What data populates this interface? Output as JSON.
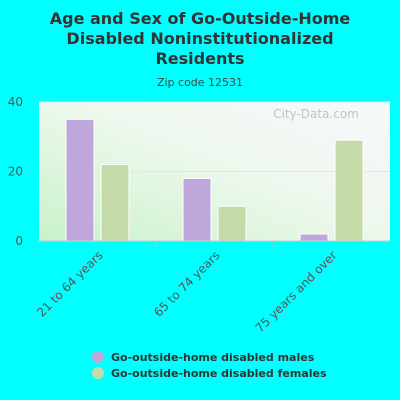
{
  "colors": {
    "males": "#bfa7dc",
    "females": "#c5dba7",
    "background": "#00ffff"
  },
  "watermark": "City-Data.com",
  "chart_data": {
    "type": "bar",
    "title": "Age and Sex of Go-Outside-Home Disabled Noninstitutionalized Residents",
    "subtitle": "Zip code 12531",
    "categories": [
      "21 to 64 years",
      "65 to 74 years",
      "75 years and over"
    ],
    "series": [
      {
        "name": "Go-outside-home disabled males",
        "values": [
          35,
          18,
          2
        ]
      },
      {
        "name": "Go-outside-home disabled females",
        "values": [
          22,
          10,
          29
        ]
      }
    ],
    "ylim": [
      0,
      40
    ],
    "yticks": [
      0,
      20,
      40
    ],
    "grid": true,
    "legend_position": "bottom"
  }
}
